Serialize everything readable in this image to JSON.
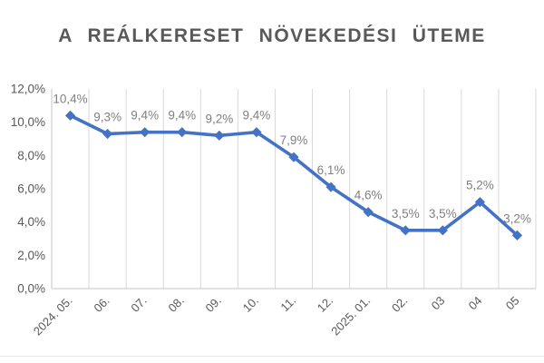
{
  "title": "A REÁLKERESET NÖVEKEDÉSI ÜTEME",
  "colors": {
    "series_line": "#4472C4",
    "marker_fill": "#4472C4",
    "gridline": "#D9D9D9",
    "axis_line": "#C6C6C6",
    "axis_tick_label": "#595959",
    "data_label": "#7F7F7F",
    "title_text": "#595959",
    "background": "#FFFFFF"
  },
  "chart_data": {
    "type": "line",
    "title": "A REÁLKERESET NÖVEKEDÉSI ÜTEME",
    "categories": [
      "2024. 05.",
      "06.",
      "07.",
      "08.",
      "09.",
      "10.",
      "11.",
      "12.",
      "2025. 01.",
      "02.",
      "03",
      "04",
      "05"
    ],
    "values": [
      10.4,
      9.3,
      9.4,
      9.4,
      9.2,
      9.4,
      7.9,
      6.1,
      4.6,
      3.5,
      3.5,
      5.2,
      3.2
    ],
    "point_labels": [
      "10,4%",
      "9,3%",
      "9,4%",
      "9,4%",
      "9,2%",
      "9,4%",
      "7,9%",
      "6,1%",
      "4,6%",
      "3,5%",
      "3,5%",
      "5,2%",
      "3,2%"
    ],
    "xlabel": "",
    "ylabel": "",
    "ylim": [
      0,
      12
    ],
    "y_ticks": [
      {
        "value": 0,
        "label": "0,0%"
      },
      {
        "value": 2,
        "label": "2,0%"
      },
      {
        "value": 4,
        "label": "4,0%"
      },
      {
        "value": 6,
        "label": "6,0%"
      },
      {
        "value": 8,
        "label": "8,0%"
      },
      {
        "value": 10,
        "label": "10,0%"
      },
      {
        "value": 12,
        "label": "12,0%"
      }
    ],
    "grid": "vertical-category-gridlines",
    "legend": "none",
    "marker": "diamond",
    "x_tick_rotation_deg": 45
  }
}
